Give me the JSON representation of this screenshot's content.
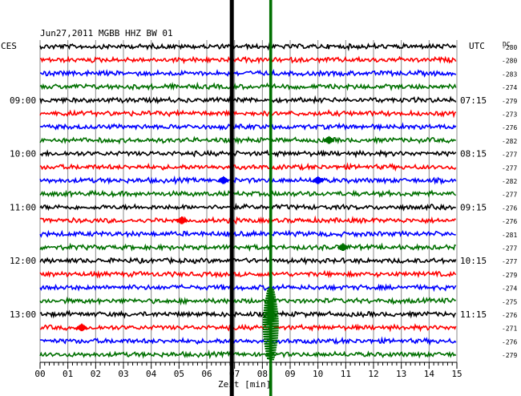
{
  "chart_data": {
    "type": "line",
    "title": "Jun27,2011   MGBB HHZ BW 01",
    "xlabel": "Zeit [min]",
    "left_label": "CES",
    "right_label": "UTC",
    "dc_label": "DC",
    "x_ticks": [
      "00",
      "01",
      "02",
      "03",
      "04",
      "05",
      "06",
      "07",
      "08",
      "09",
      "10",
      "11",
      "12",
      "13",
      "14",
      "15"
    ],
    "xlim": [
      0,
      15
    ],
    "grid": true,
    "trace_count": 24,
    "trace_colors": [
      "#000000",
      "#ff0000",
      "#0000ff",
      "#007000"
    ],
    "left_times": [
      {
        "trace": 4,
        "label": "09:00"
      },
      {
        "trace": 8,
        "label": "10:00"
      },
      {
        "trace": 12,
        "label": "11:00"
      },
      {
        "trace": 16,
        "label": "12:00"
      },
      {
        "trace": 20,
        "label": "13:00"
      }
    ],
    "right_times": [
      {
        "trace": 4,
        "label": "07:15"
      },
      {
        "trace": 8,
        "label": "08:15"
      },
      {
        "trace": 12,
        "label": "09:15"
      },
      {
        "trace": 16,
        "label": "10:15"
      },
      {
        "trace": 20,
        "label": "11:15"
      }
    ],
    "dc_offsets": [
      -280,
      -280,
      -283,
      -274,
      -279,
      -273,
      -276,
      -282,
      -277,
      -277,
      -282,
      -277,
      -276,
      -276,
      -281,
      -277,
      -277,
      -279,
      -274,
      -275,
      -276,
      -271,
      -276,
      -279
    ],
    "big_events": [
      {
        "color": "#000000",
        "minute": 6.9,
        "strength": 3.0
      },
      {
        "color": "#007000",
        "minute": 8.3,
        "strength": 1.6
      }
    ],
    "small_events": [
      {
        "trace": 7,
        "minute": 10.4
      },
      {
        "trace": 10,
        "minute": 6.6
      },
      {
        "trace": 10,
        "minute": 10.0
      },
      {
        "trace": 13,
        "minute": 5.1
      },
      {
        "trace": 15,
        "minute": 10.9
      },
      {
        "trace": 21,
        "minute": 1.5
      }
    ]
  }
}
